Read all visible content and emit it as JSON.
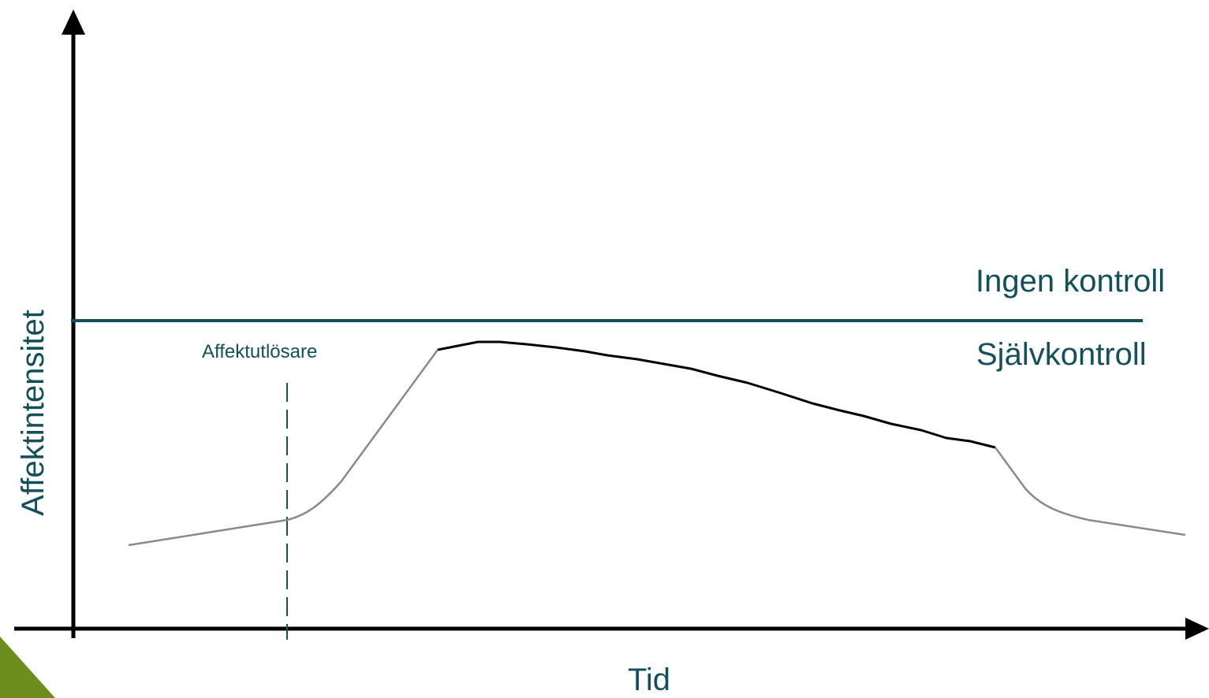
{
  "diagram": {
    "y_axis_label": "Affektintensitet",
    "x_axis_label": "Tid",
    "threshold_upper_label": "Ingen kontroll",
    "threshold_lower_label": "Självkontroll",
    "trigger_label": "Affektutlösare"
  },
  "colors": {
    "teal": "#13505b",
    "axis": "#000000",
    "curve_grey": "#8a8a8a",
    "curve_black": "#000000",
    "corner_accent": "#6e8d1f"
  }
}
